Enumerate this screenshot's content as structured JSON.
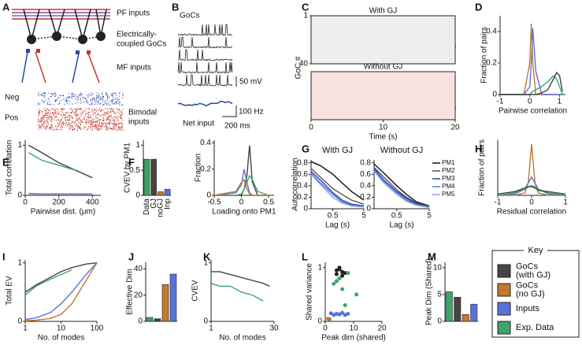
{
  "panel_letters": [
    "A",
    "B",
    "C",
    "D",
    "E",
    "F",
    "G",
    "H",
    "I",
    "J",
    "K",
    "L",
    "M"
  ],
  "panel_a": [
    "PF inputs",
    "Electrically-",
    "coupled GoCs",
    "MF inputs",
    "Neg",
    "Pos",
    "Bimodal",
    "inputs"
  ],
  "panel_b": [
    "GoCs",
    "50 mV",
    "Net input",
    "100 Hz",
    "200 ms"
  ],
  "key": {
    "title": "Key",
    "items": [
      {
        "label": [
          "GoCs",
          "(with GJ)"
        ],
        "color": "#444444"
      },
      {
        "label": [
          "GoCs",
          "(no GJ)"
        ],
        "color": "#c07a30"
      },
      {
        "label": [
          "Inputs"
        ],
        "color": "#5a72d8"
      },
      {
        "label": [
          "Exp. Data"
        ],
        "color": "#3fa36a"
      }
    ]
  },
  "chart_data": [
    {
      "type": "raster",
      "titles": [
        "With GJ",
        "Without GJ"
      ],
      "ylabel": "GoC #",
      "xlabel": "Time (s)",
      "xlim": [
        0,
        20
      ],
      "xticks": [
        0,
        10,
        20
      ],
      "ylim": [
        1,
        40
      ],
      "yticks": [
        1,
        40
      ],
      "colors": [
        "#444444",
        "#c0392b"
      ]
    },
    {
      "type": "line",
      "ylabel": "Fraction of pairs",
      "xlabel": "Pairwise correlation",
      "xlim": [
        -1,
        1.2
      ],
      "ylim": [
        0,
        0.5
      ],
      "xticks": [
        -1,
        0,
        1
      ],
      "yticks": [
        0,
        0.2,
        0.4
      ],
      "x": [
        -1,
        -0.2,
        0,
        0.05,
        0.1,
        0.2,
        0.4,
        0.6,
        0.8,
        0.9,
        1,
        1.1
      ],
      "series": [
        {
          "color": "#c07a30",
          "values": [
            0,
            0,
            0.2,
            0.45,
            0.2,
            0,
            0,
            0,
            0,
            0,
            0,
            0
          ]
        },
        {
          "color": "#5a72d8",
          "values": [
            0,
            0,
            0.05,
            0.2,
            0.42,
            0.15,
            0,
            0,
            0,
            0,
            0,
            0
          ]
        },
        {
          "color": "#3fa36a",
          "values": [
            0,
            0,
            0,
            0.01,
            0.02,
            0.03,
            0.05,
            0.08,
            0.12,
            0.1,
            0.05,
            0
          ]
        },
        {
          "color": "#444444",
          "values": [
            0,
            0,
            0,
            0,
            0,
            0,
            0.01,
            0.03,
            0.1,
            0.14,
            0.12,
            0.02
          ]
        }
      ]
    },
    {
      "type": "line",
      "ylabel": "Total correlation",
      "xlabel": "Pairwise dist. (μm)",
      "xlim": [
        0,
        450
      ],
      "ylim": [
        0,
        1.1
      ],
      "xticks": [
        0,
        200,
        400
      ],
      "yticks": [
        0,
        1
      ],
      "x": [
        20,
        100,
        200,
        300,
        400
      ],
      "series": [
        {
          "color": "#444444",
          "values": [
            1,
            0.85,
            0.65,
            0.5,
            0.35
          ]
        },
        {
          "color": "#3fa36a",
          "values": [
            0.85,
            0.7,
            0.6,
            0.5,
            null
          ]
        },
        {
          "color": "#c07a30",
          "values": [
            0.04,
            0.03,
            0.03,
            0.03,
            0.03
          ]
        },
        {
          "color": "#5a72d8",
          "values": [
            0.01,
            0.01,
            0.01,
            0.01,
            0.01
          ]
        }
      ]
    },
    {
      "type": "bar",
      "ylabel": "CVEV by PM1",
      "categories": [
        "Data",
        "GJ",
        "noGJ",
        "Inp"
      ],
      "values": [
        0.72,
        0.72,
        0.07,
        0.12
      ],
      "colors": [
        "#3fa36a",
        "#444444",
        "#c07a30",
        "#5a72d8"
      ],
      "ylim": [
        0,
        1.1
      ],
      "yticks": [
        0,
        0.5,
        1
      ]
    },
    {
      "type": "line",
      "ylabel": "Fraction",
      "xlabel": "Loading onto PM1",
      "xlim": [
        -0.5,
        0.6
      ],
      "ylim": [
        0,
        0.42
      ],
      "xticks": [
        -0.5,
        0,
        0.5
      ],
      "yticks": [
        0,
        0.2,
        0.4
      ],
      "x": [
        -0.5,
        -0.1,
        0,
        0.05,
        0.1,
        0.15,
        0.2,
        0.3,
        0.5
      ],
      "series": [
        {
          "color": "#444444",
          "values": [
            0,
            0,
            0,
            0.05,
            0.15,
            0.38,
            0.1,
            0,
            0
          ]
        },
        {
          "color": "#3fa36a",
          "values": [
            0,
            0,
            0.01,
            0.05,
            0.1,
            0.15,
            0.12,
            0.03,
            0
          ]
        },
        {
          "color": "#5a72d8",
          "values": [
            0,
            0.02,
            0.08,
            0.2,
            0.1,
            0.02,
            0,
            0,
            0
          ]
        },
        {
          "color": "#c07a30",
          "values": [
            0,
            0.03,
            0.1,
            0.12,
            0.05,
            0.01,
            0,
            0,
            0
          ]
        }
      ]
    },
    {
      "type": "line",
      "title": "With GJ",
      "ylabel": "Autocorrelation",
      "xlabel": "Lag (s)",
      "log_x": true,
      "xlim": [
        0.1,
        5
      ],
      "ylim": [
        0,
        0.85
      ],
      "xticks": [
        0.5,
        5
      ],
      "yticks": [
        0,
        0.2,
        0.4,
        0.6,
        0.8
      ],
      "x": [
        0.1,
        0.2,
        0.5,
        1,
        2,
        5
      ],
      "series": [
        {
          "color": "#111111",
          "values": [
            0.82,
            0.75,
            0.6,
            0.45,
            0.3,
            0.15
          ]
        },
        {
          "color": "#555555",
          "values": [
            0.7,
            0.55,
            0.35,
            0.25,
            0.15,
            0.08
          ]
        },
        {
          "color": "#2c44a8",
          "values": [
            0.65,
            0.5,
            0.28,
            0.15,
            0.08,
            0.05
          ]
        },
        {
          "color": "#5a72d8",
          "values": [
            0.62,
            0.45,
            0.25,
            0.12,
            0.06,
            0.04
          ]
        },
        {
          "color": "#8fa0e8",
          "values": [
            0.6,
            0.42,
            0.2,
            0.1,
            0.05,
            0.03
          ]
        }
      ]
    },
    {
      "type": "line",
      "title": "Without GJ",
      "xlabel": "Lag (s)",
      "log_x": true,
      "xlim": [
        0.1,
        5
      ],
      "ylim": [
        0,
        0.85
      ],
      "xticks": [
        0.5,
        5
      ],
      "yticks": [
        0,
        0.2,
        0.4,
        0.6,
        0.8
      ],
      "x": [
        0.1,
        0.2,
        0.5,
        1,
        2,
        5
      ],
      "series": [
        {
          "name": "PM1",
          "color": "#111111",
          "values": [
            0.78,
            0.62,
            0.4,
            0.25,
            0.12,
            0.05
          ]
        },
        {
          "name": "PM2",
          "color": "#555555",
          "values": [
            0.72,
            0.55,
            0.33,
            0.2,
            0.1,
            0.04
          ]
        },
        {
          "name": "PM3",
          "color": "#2c44a8",
          "values": [
            0.7,
            0.5,
            0.3,
            0.18,
            0.08,
            0.03
          ]
        },
        {
          "name": "PM4",
          "color": "#5a72d8",
          "values": [
            0.68,
            0.48,
            0.28,
            0.15,
            0.07,
            0.03
          ]
        },
        {
          "name": "PM5",
          "color": "#8fa0e8",
          "values": [
            0.65,
            0.45,
            0.25,
            0.13,
            0.06,
            0.02
          ]
        }
      ]
    },
    {
      "type": "line",
      "ylabel": "Fraction of pairs",
      "xlabel": "Residual correlation",
      "xlim": [
        -1,
        1
      ],
      "ylim": [
        0,
        0.45
      ],
      "xticks": [
        -1,
        0,
        1
      ],
      "x": [
        -1,
        -0.5,
        -0.2,
        -0.1,
        0,
        0.1,
        0.2,
        0.5,
        1
      ],
      "series": [
        {
          "color": "#c07a30",
          "values": [
            0,
            0,
            0.02,
            0.1,
            0.42,
            0.1,
            0.02,
            0,
            0
          ]
        },
        {
          "color": "#5a72d8",
          "values": [
            0,
            0.01,
            0.05,
            0.1,
            0.15,
            0.1,
            0.05,
            0.01,
            0
          ]
        },
        {
          "color": "#3fa36a",
          "values": [
            0,
            0.02,
            0.05,
            0.07,
            0.08,
            0.07,
            0.05,
            0.02,
            0
          ]
        },
        {
          "color": "#444444",
          "values": [
            0.01,
            0.03,
            0.06,
            0.07,
            0.07,
            0.06,
            0.04,
            0.03,
            0.01
          ]
        }
      ]
    },
    {
      "type": "line",
      "ylabel": "Total EV",
      "xlabel": "No. of modes",
      "log_x": true,
      "xlim": [
        1,
        100
      ],
      "ylim": [
        0,
        1.05
      ],
      "xticks": [
        1,
        10,
        100
      ],
      "yticks": [
        0,
        1
      ],
      "x": [
        1,
        2,
        5,
        10,
        20,
        50,
        100
      ],
      "series": [
        {
          "color": "#444444",
          "values": [
            0.5,
            0.62,
            0.75,
            0.85,
            0.92,
            0.98,
            1
          ]
        },
        {
          "color": "#3fa36a",
          "values": [
            0.45,
            0.6,
            0.72,
            0.8,
            0.88,
            null,
            null
          ]
        },
        {
          "color": "#5a72d8",
          "values": [
            0.03,
            0.06,
            0.15,
            0.3,
            0.5,
            0.8,
            1
          ]
        },
        {
          "color": "#c07a30",
          "values": [
            0.01,
            0.02,
            0.05,
            0.12,
            0.3,
            0.7,
            1
          ]
        }
      ]
    },
    {
      "type": "bar",
      "ylabel": "Effective Dim",
      "values": [
        3,
        2,
        28,
        36
      ],
      "colors": [
        "#3fa36a",
        "#444444",
        "#c07a30",
        "#5a72d8"
      ],
      "ylim": [
        0,
        45
      ],
      "yticks": [
        0,
        20,
        40
      ]
    },
    {
      "type": "line",
      "ylabel": "CVEV",
      "xlabel": "No. of modes",
      "xlim": [
        1,
        30
      ],
      "ylim": [
        0,
        1.05
      ],
      "xticks": [
        1,
        30
      ],
      "yticks": [
        0,
        1
      ],
      "x": [
        1,
        5,
        10,
        15,
        20,
        25,
        28
      ],
      "series": [
        {
          "color": "#444444",
          "values": [
            0.85,
            0.85,
            0.8,
            0.75,
            0.7,
            0.65,
            0.6
          ]
        },
        {
          "color": "#3fa36a",
          "values": [
            0.65,
            0.6,
            0.6,
            0.5,
            0.45,
            0.35,
            null
          ]
        }
      ]
    },
    {
      "type": "scatter",
      "ylabel": "Shared variance",
      "xlabel": "Peak dim (shared)",
      "xlim": [
        0,
        20
      ],
      "ylim": [
        0,
        1.1
      ],
      "xticks": [
        0,
        10,
        20
      ],
      "yticks": [
        0,
        1
      ],
      "series": [
        {
          "color": "#222222",
          "x": [
            4,
            5,
            6,
            5,
            7,
            6,
            4
          ],
          "values": [
            0.95,
            1,
            0.92,
            0.97,
            0.9,
            0.85,
            0.88
          ]
        },
        {
          "color": "#3fa36a",
          "x": [
            3,
            5,
            6,
            8,
            11,
            7,
            4
          ],
          "values": [
            0.7,
            0.8,
            0.6,
            0.9,
            0.5,
            0.3,
            0.75
          ]
        },
        {
          "color": "#5a72d8",
          "x": [
            2,
            3,
            4,
            5,
            6,
            7,
            8
          ],
          "values": [
            0.15,
            0.12,
            0.14,
            0.13,
            0.16,
            0.12,
            0.14
          ]
        },
        {
          "color": "#c07a30",
          "x": [
            1,
            1.5
          ],
          "values": [
            0.05,
            0.04
          ]
        }
      ]
    },
    {
      "type": "bar",
      "ylabel": "Peak Dim (Shared)",
      "values": [
        5.5,
        4.5,
        1.3,
        3.2
      ],
      "colors": [
        "#3fa36a",
        "#444444",
        "#c07a30",
        "#5a72d8"
      ],
      "ylim": [
        0,
        11
      ],
      "yticks": [
        0,
        5,
        10
      ]
    }
  ]
}
